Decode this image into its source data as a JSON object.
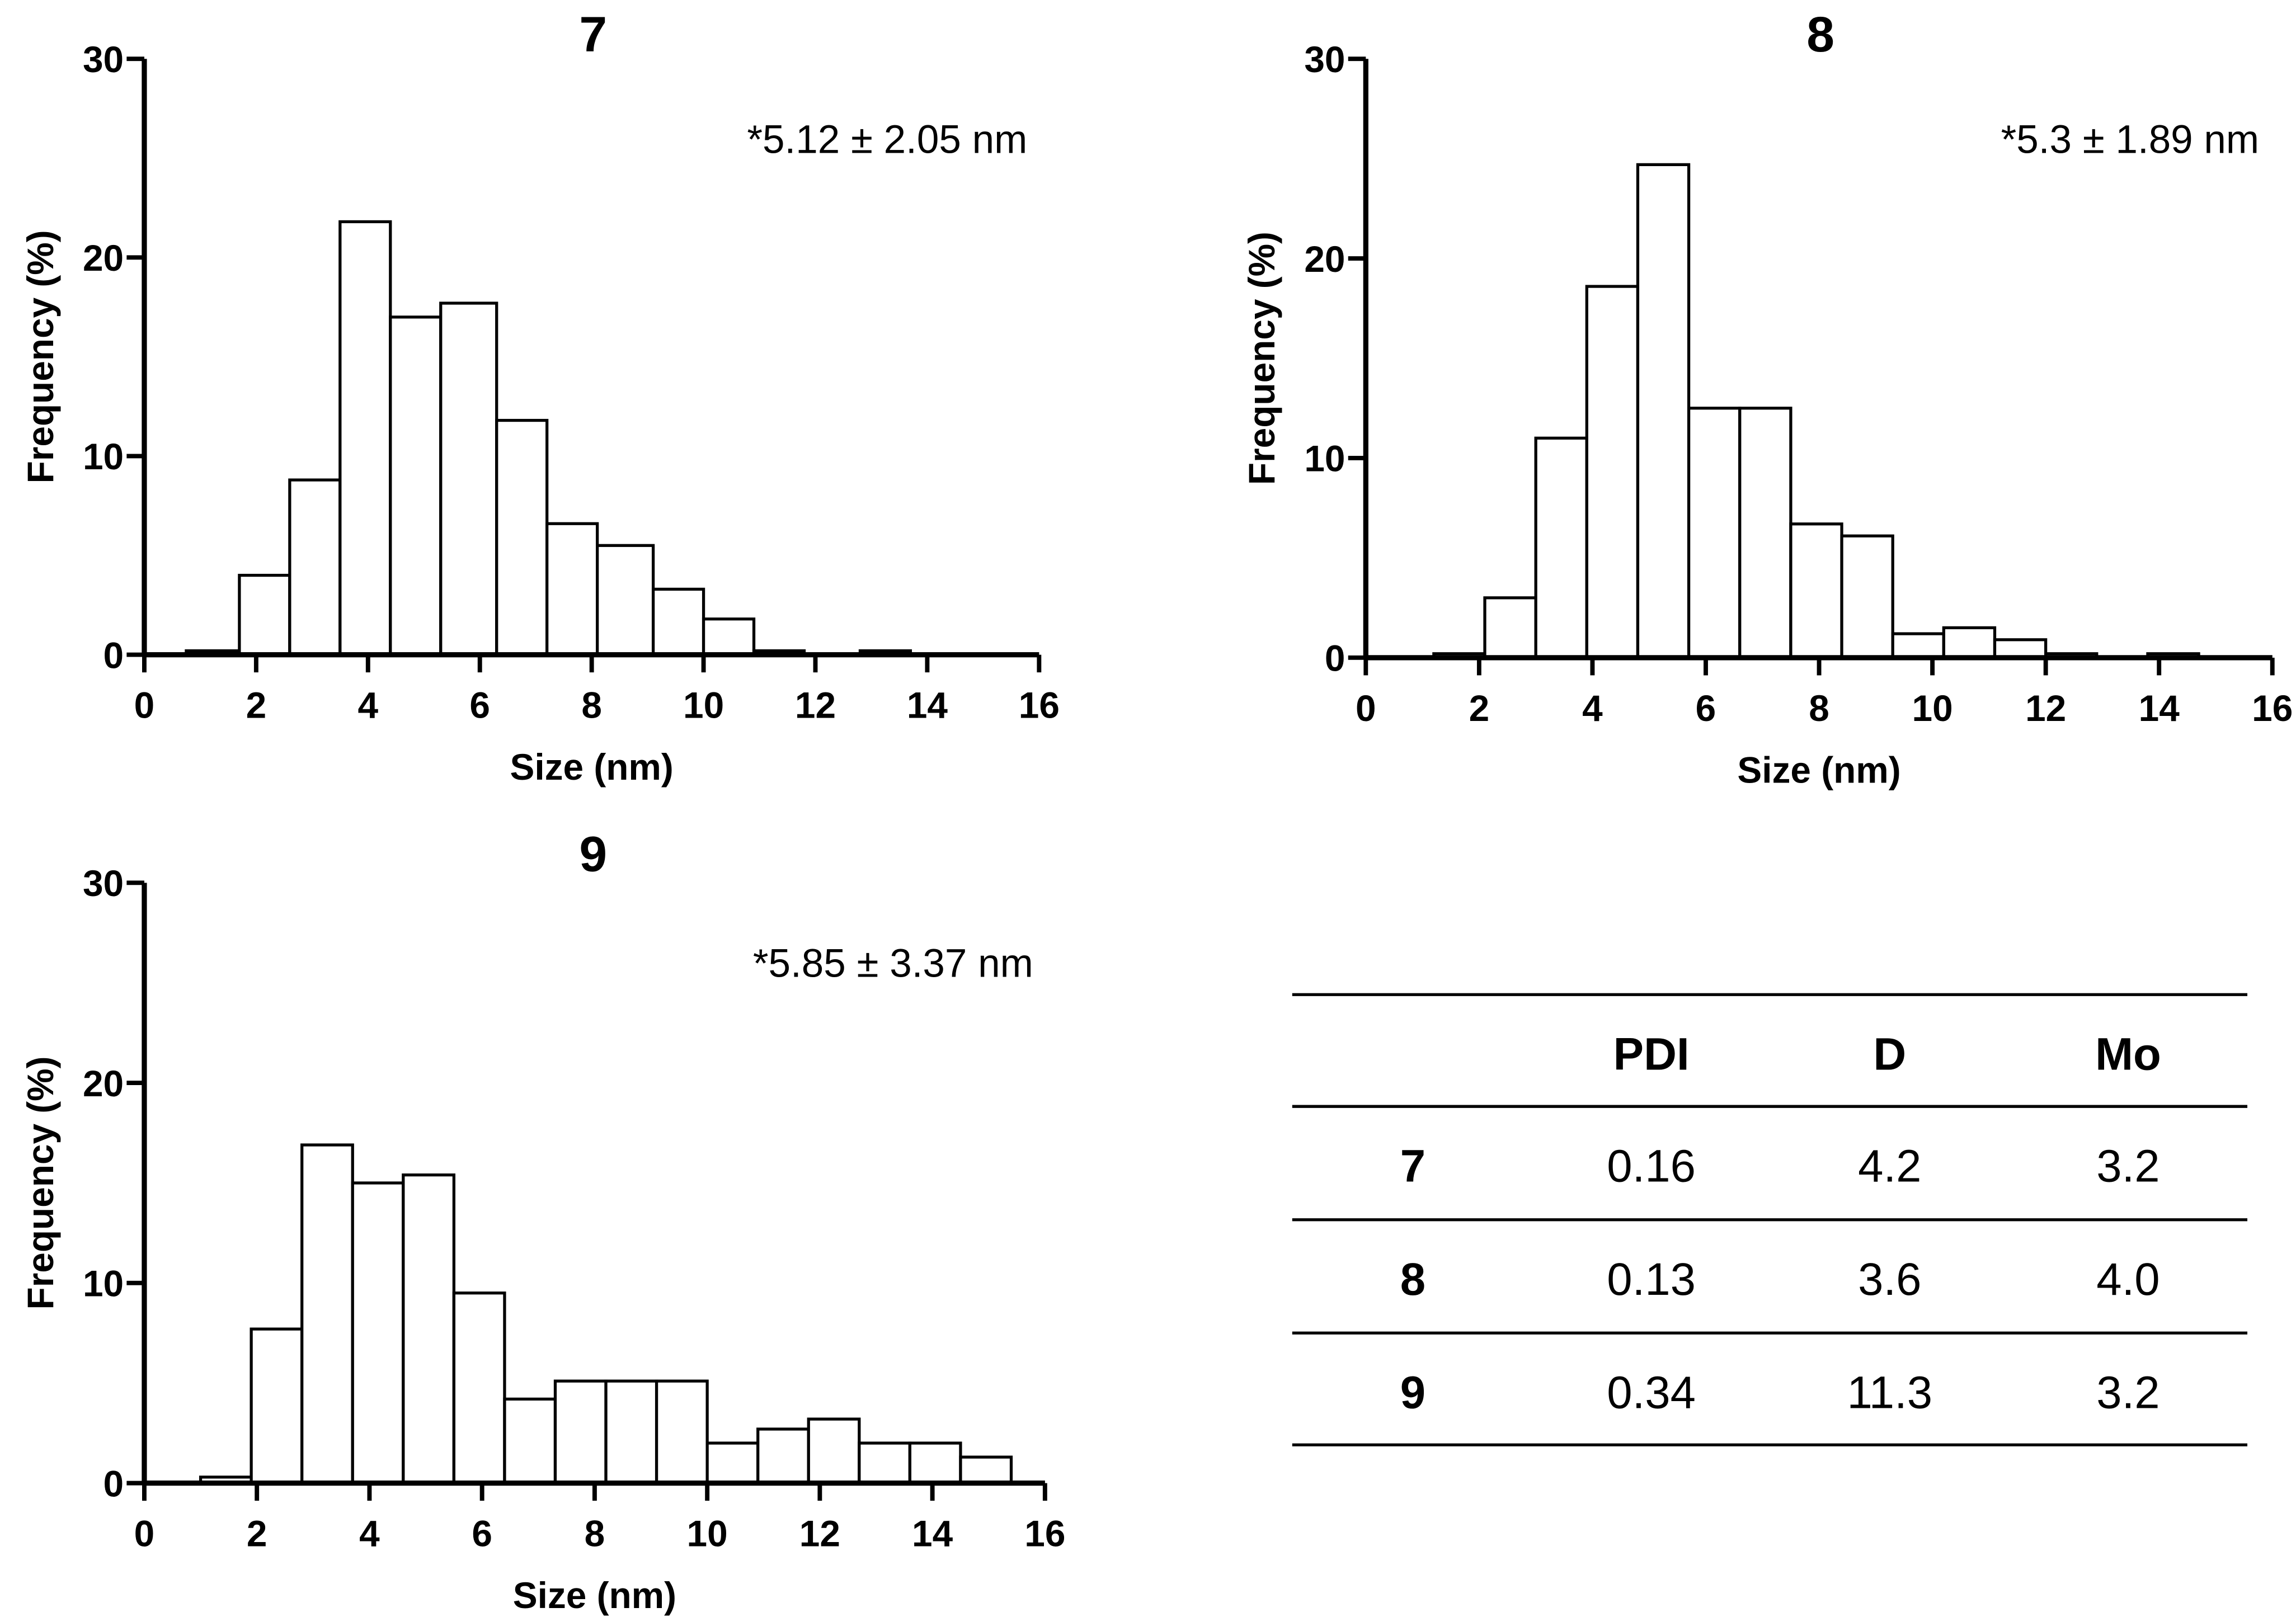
{
  "chart_data": [
    {
      "type": "bar",
      "title": "7",
      "annotation": "*5.12 ± 2.05 nm",
      "xlabel": "Size (nm)",
      "ylabel": "Frequency (%)",
      "xlim": [
        0,
        16
      ],
      "ylim": [
        0,
        30
      ],
      "xticks": [
        "0",
        "2",
        "4",
        "6",
        "8",
        "10",
        "12",
        "14",
        "16"
      ],
      "yticks": [
        "0",
        "10",
        "20",
        "30"
      ],
      "bins": [
        [
          0.75,
          1.7
        ],
        [
          1.7,
          2.6
        ],
        [
          2.6,
          3.5
        ],
        [
          3.5,
          4.4
        ],
        [
          4.4,
          5.3
        ],
        [
          5.3,
          6.3
        ],
        [
          6.3,
          7.2
        ],
        [
          7.2,
          8.1
        ],
        [
          8.1,
          9.1
        ],
        [
          9.1,
          10.0
        ],
        [
          10.0,
          10.9
        ],
        [
          10.9,
          11.8
        ],
        [
          11.8,
          12.8
        ],
        [
          12.8,
          13.7
        ]
      ],
      "values": [
        0.2,
        4.0,
        8.8,
        21.8,
        17.0,
        17.7,
        11.8,
        6.6,
        5.5,
        3.3,
        1.8,
        0.2,
        0,
        0.2
      ]
    },
    {
      "type": "bar",
      "title": "8",
      "annotation": "*5.3 ± 1.89 nm",
      "xlabel": "Size (nm)",
      "ylabel": "Frequency (%)",
      "xlim": [
        0,
        16
      ],
      "ylim": [
        0,
        30
      ],
      "xticks": [
        "0",
        "2",
        "4",
        "6",
        "8",
        "10",
        "12",
        "14",
        "16"
      ],
      "yticks": [
        "0",
        "10",
        "20",
        "30"
      ],
      "bins": [
        [
          1.2,
          2.1
        ],
        [
          2.1,
          3.0
        ],
        [
          3.0,
          3.9
        ],
        [
          3.9,
          4.8
        ],
        [
          4.8,
          5.7
        ],
        [
          5.7,
          6.6
        ],
        [
          6.6,
          7.5
        ],
        [
          7.5,
          8.4
        ],
        [
          8.4,
          9.3
        ],
        [
          9.3,
          10.2
        ],
        [
          10.2,
          11.1
        ],
        [
          11.1,
          12.0
        ],
        [
          12.0,
          12.9
        ],
        [
          12.9,
          13.8
        ],
        [
          13.8,
          14.7
        ]
      ],
      "values": [
        0.2,
        3.0,
        11.0,
        18.6,
        24.7,
        12.5,
        12.5,
        6.7,
        6.1,
        1.2,
        1.5,
        0.9,
        0.2,
        0,
        0.2
      ]
    },
    {
      "type": "bar",
      "title": "9",
      "annotation": "*5.85 ± 3.37 nm",
      "xlabel": "Size (nm)",
      "ylabel": "Frequency (%)",
      "xlim": [
        0,
        16
      ],
      "ylim": [
        0,
        30
      ],
      "xticks": [
        "0",
        "2",
        "4",
        "6",
        "8",
        "10",
        "12",
        "14",
        "16"
      ],
      "yticks": [
        "0",
        "10",
        "20",
        "30"
      ],
      "bins": [
        [
          1.0,
          1.9
        ],
        [
          1.9,
          2.8
        ],
        [
          2.8,
          3.7
        ],
        [
          3.7,
          4.6
        ],
        [
          4.6,
          5.5
        ],
        [
          5.5,
          6.4
        ],
        [
          6.4,
          7.3
        ],
        [
          7.3,
          8.2
        ],
        [
          8.2,
          9.1
        ],
        [
          9.1,
          10.0
        ],
        [
          10.0,
          10.9
        ],
        [
          10.9,
          11.8
        ],
        [
          11.8,
          12.7
        ],
        [
          12.7,
          13.6
        ],
        [
          13.6,
          14.5
        ],
        [
          14.5,
          15.4
        ]
      ],
      "values": [
        0.3,
        7.7,
        16.9,
        15.0,
        15.4,
        9.5,
        4.2,
        5.1,
        5.1,
        5.1,
        2.0,
        2.7,
        3.2,
        2.0,
        2.0,
        1.3
      ]
    },
    {
      "type": "table",
      "columns": [
        "",
        "PDI",
        "D",
        "Mo"
      ],
      "rows": [
        [
          "7",
          "0.16",
          "4.2",
          "3.2"
        ],
        [
          "8",
          "0.13",
          "3.6",
          "4.0"
        ],
        [
          "9",
          "0.34",
          "11.3",
          "3.2"
        ]
      ]
    }
  ]
}
